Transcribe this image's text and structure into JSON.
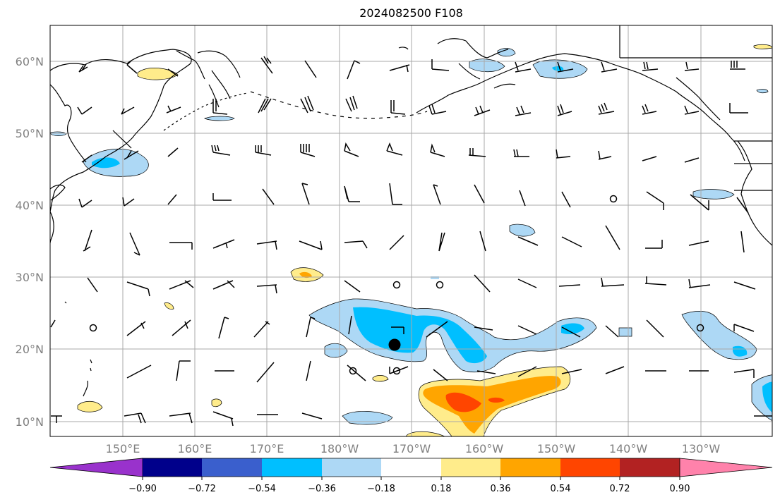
{
  "title": "2024082500 F108",
  "lat_labels": [
    "60°N",
    "50°N",
    "40°N",
    "30°N",
    "20°N",
    "10°N"
  ],
  "lon_labels": [
    "150°E",
    "160°E",
    "170°E",
    "180°W",
    "170°W",
    "160°W",
    "150°W",
    "140°W",
    "130°W"
  ],
  "colorbar": {
    "tick_labels": [
      "−0.90",
      "−0.72",
      "−0.54",
      "−0.36",
      "−0.18",
      "0.18",
      "0.36",
      "0.54",
      "0.72",
      "0.90"
    ],
    "colors": [
      "#9932cc",
      "#00008b",
      "#3a5fcd",
      "#00bfff",
      "#add8f5",
      "#ffffff",
      "#ffec8b",
      "#ffa500",
      "#ff4500",
      "#b22222",
      "#ff82ab"
    ]
  },
  "colors": {
    "grid": "#a9a9a9",
    "label": "#808080",
    "coast": "#000000"
  }
}
